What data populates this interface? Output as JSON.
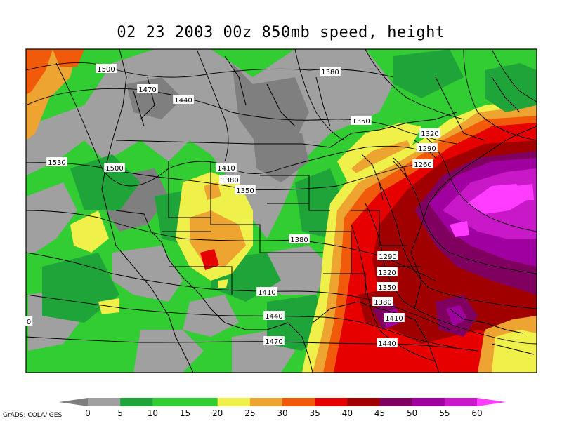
{
  "title": "02 23 2003 00z 850mb speed, height",
  "credit": "GrADS: COLA/IGES",
  "colors": {
    "c0": "#7f7f7f",
    "c5": "#a0a0a0",
    "c10": "#1fa43a",
    "c15": "#32cd32",
    "c20": "#f0f04a",
    "c25": "#eea430",
    "c30": "#f05a0a",
    "c35": "#e60000",
    "c40": "#a00000",
    "c45": "#800060",
    "c50": "#a000a0",
    "c55": "#c818c8",
    "c60": "#ff3cff"
  },
  "colorbar": {
    "ticks": [
      "0",
      "5",
      "10",
      "15",
      "20",
      "25",
      "30",
      "35",
      "40",
      "45",
      "50",
      "55",
      "60"
    ],
    "colors": [
      "#7f7f7f",
      "#a0a0a0",
      "#1fa43a",
      "#32cd32",
      "#32cd32",
      "#f0f04a",
      "#eea430",
      "#f05a0a",
      "#e60000",
      "#a00000",
      "#800060",
      "#a000a0",
      "#c818c8",
      "#ff3cff"
    ]
  },
  "contour_labels": [
    {
      "text": "1500"
    },
    {
      "text": "1470"
    },
    {
      "text": "1440"
    },
    {
      "text": "1380"
    },
    {
      "text": "1350"
    },
    {
      "text": "1320"
    },
    {
      "text": "1290"
    },
    {
      "text": "1260"
    },
    {
      "text": "1530"
    },
    {
      "text": "1500"
    },
    {
      "text": "1410"
    },
    {
      "text": "1380"
    },
    {
      "text": "1350"
    },
    {
      "text": "1380"
    },
    {
      "text": "1290"
    },
    {
      "text": "1320"
    },
    {
      "text": "1350"
    },
    {
      "text": "1380"
    },
    {
      "text": "1410"
    },
    {
      "text": "1410"
    },
    {
      "text": "1440"
    },
    {
      "text": "1470"
    },
    {
      "text": "1440"
    },
    {
      "text": "0"
    }
  ]
}
